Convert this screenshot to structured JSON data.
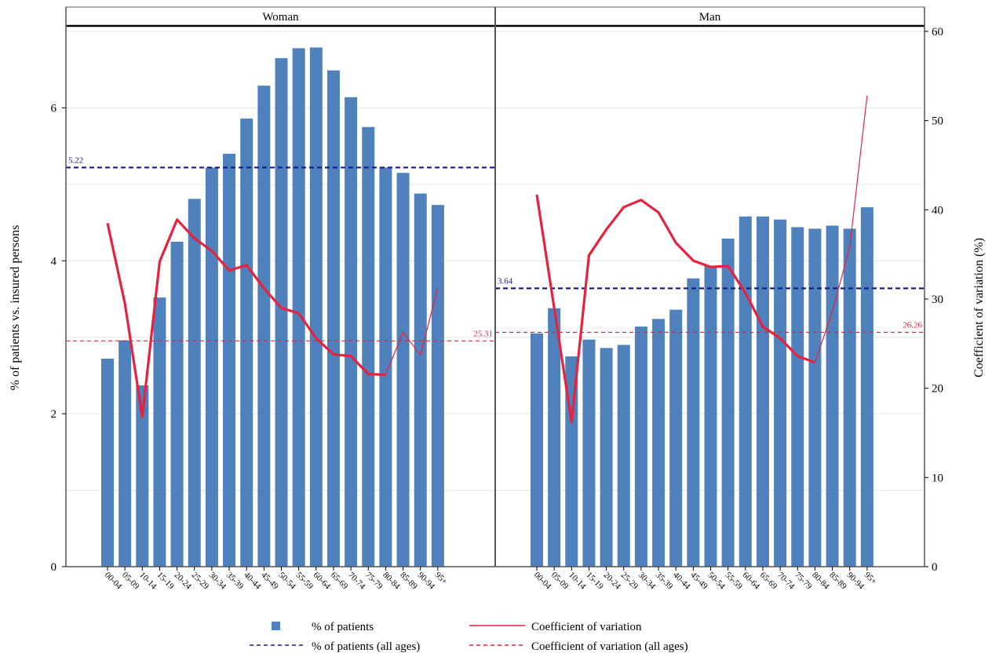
{
  "chart_data": {
    "type": "bar",
    "panels": [
      "Woman",
      "Man"
    ],
    "categories": [
      "00-04",
      "05-09",
      "10-14",
      "15-19",
      "20-24",
      "25-29",
      "30-34",
      "35-39",
      "40-44",
      "45-49",
      "50-54",
      "55-59",
      "60-64",
      "65-69",
      "70-74",
      "75-79",
      "80-84",
      "85-89",
      "90-94",
      "95+"
    ],
    "ylabel": "% of patients vs. insured persons",
    "y2label": "Coefficient of variation (%)",
    "ylim": [
      0,
      7
    ],
    "y2lim": [
      0,
      60
    ],
    "yticks": [
      0,
      2,
      4,
      6
    ],
    "y2ticks": [
      0,
      10,
      20,
      30,
      40,
      50,
      60
    ],
    "series": [
      {
        "name": "% of patients",
        "panel": "Woman",
        "axis": "left",
        "values": [
          2.72,
          2.96,
          2.37,
          3.52,
          4.25,
          4.81,
          5.22,
          5.4,
          5.86,
          6.29,
          6.65,
          6.78,
          6.79,
          6.49,
          6.14,
          5.75,
          5.22,
          5.15,
          4.88,
          4.73
        ]
      },
      {
        "name": "% of patients",
        "panel": "Man",
        "axis": "left",
        "values": [
          3.05,
          3.38,
          2.75,
          2.97,
          2.86,
          2.9,
          3.14,
          3.24,
          3.36,
          3.77,
          3.93,
          4.29,
          4.58,
          4.58,
          4.54,
          4.44,
          4.42,
          4.46,
          4.42,
          4.7
        ]
      },
      {
        "name": "Coefficient of variation",
        "panel": "Woman",
        "axis": "right",
        "values": [
          38.5,
          29.5,
          16.8,
          34.2,
          38.9,
          36.8,
          35.4,
          33.2,
          33.8,
          31.2,
          29.0,
          28.4,
          25.6,
          23.8,
          23.6,
          21.6,
          21.5,
          26.3,
          23.7,
          31.3
        ]
      },
      {
        "name": "Coefficient of variation",
        "panel": "Man",
        "axis": "right",
        "values": [
          41.7,
          29.0,
          16.2,
          34.9,
          37.8,
          40.3,
          41.1,
          39.7,
          36.3,
          34.3,
          33.6,
          33.7,
          30.7,
          26.9,
          25.6,
          23.6,
          22.9,
          28.6,
          35.8,
          52.8
        ]
      }
    ],
    "reference_lines": [
      {
        "name": "% of patients (all ages)",
        "panel": "Woman",
        "axis": "left",
        "value": 5.22,
        "label": "5.22"
      },
      {
        "name": "% of patients (all ages)",
        "panel": "Man",
        "axis": "left",
        "value": 3.64,
        "label": "3.64"
      },
      {
        "name": "Coefficient of variation (all ages)",
        "panel": "Woman",
        "axis": "right",
        "value": 25.31,
        "label": "25.31"
      },
      {
        "name": "Coefficient of variation (all ages)",
        "panel": "Man",
        "axis": "right",
        "value": 26.26,
        "label": "26.26"
      }
    ],
    "legend": {
      "placement": "bottom",
      "items": [
        "% of patients",
        "Coefficient of variation",
        "% of patients (all ages)",
        "Coefficient of variation (all ages)"
      ]
    },
    "grid": true
  },
  "colors": {
    "bar": "#4f81bd",
    "cv_line": "#e8213f",
    "mean_line": "#1a1a8c",
    "cv_mean_line": "#e8213f",
    "grid": "#e6e6e6"
  }
}
